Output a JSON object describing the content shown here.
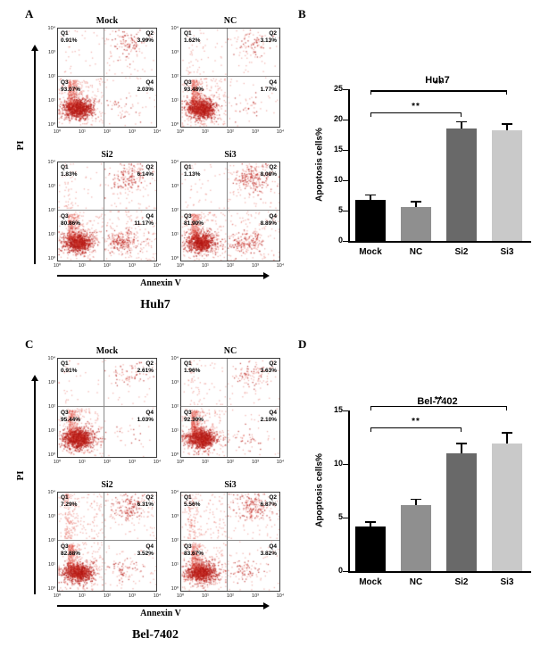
{
  "quadrant_names": [
    "Q1",
    "Q2",
    "Q3",
    "Q4"
  ],
  "flow_panels": [
    {
      "label": "A",
      "cell_line": "Huh7",
      "x_axis_label": "Annexin V",
      "y_axis_label": "PI",
      "tick_labels": [
        "10⁰",
        "10¹",
        "10²",
        "10³",
        "10⁴"
      ],
      "plots": [
        {
          "title": "Mock",
          "q1": "0.91%",
          "q2": "3.99%",
          "q3": "93.07%",
          "q4": "2.03%"
        },
        {
          "title": "NC",
          "q1": "1.62%",
          "q2": "3.13%",
          "q3": "93.48%",
          "q4": "1.77%"
        },
        {
          "title": "Si2",
          "q1": "1.83%",
          "q2": "6.14%",
          "q3": "80.86%",
          "q4": "11.17%"
        },
        {
          "title": "Si3",
          "q1": "1.13%",
          "q2": "8.08%",
          "q3": "81.90%",
          "q4": "8.89%"
        }
      ]
    },
    {
      "label": "C",
      "cell_line": "Bel-7402",
      "x_axis_label": "Annexin V",
      "y_axis_label": "PI",
      "tick_labels": [
        "10⁰",
        "10¹",
        "10²",
        "10³",
        "10⁴"
      ],
      "plots": [
        {
          "title": "Mock",
          "q1": "0.91%",
          "q2": "2.61%",
          "q3": "95.44%",
          "q4": "1.03%"
        },
        {
          "title": "NC",
          "q1": "1.96%",
          "q2": "3.63%",
          "q3": "92.30%",
          "q4": "2.10%"
        },
        {
          "title": "Si2",
          "q1": "7.29%",
          "q2": "6.31%",
          "q3": "82.88%",
          "q4": "3.52%"
        },
        {
          "title": "Si3",
          "q1": "5.56%",
          "q2": "6.87%",
          "q3": "83.67%",
          "q4": "3.82%"
        }
      ]
    }
  ],
  "chart_data": [
    {
      "type": "bar",
      "panel": "B",
      "title": "Huh7",
      "xlabel": "",
      "ylabel": "Apoptosis cells%",
      "ylim": [
        0,
        25
      ],
      "yticks": [
        0,
        5,
        10,
        15,
        20,
        25
      ],
      "categories": [
        "Mock",
        "NC",
        "Si2",
        "Si3"
      ],
      "values": [
        6.8,
        5.6,
        18.5,
        18.2
      ],
      "errors": [
        0.8,
        0.9,
        1.1,
        1.1
      ],
      "bar_colors": [
        "#000000",
        "#8f8f8f",
        "#696969",
        "#c9c9c9"
      ],
      "significance": [
        {
          "from": 0,
          "to": 3,
          "y": 24.8,
          "label": "**"
        },
        {
          "from": 0,
          "to": 2,
          "y": 21.2,
          "label": "**"
        }
      ]
    },
    {
      "type": "bar",
      "panel": "D",
      "title": "Bel-7402",
      "xlabel": "",
      "ylabel": "Apoptosis cells%",
      "ylim": [
        0,
        15
      ],
      "yticks": [
        0,
        5,
        10,
        15
      ],
      "categories": [
        "Mock",
        "NC",
        "Si2",
        "Si3"
      ],
      "values": [
        4.2,
        6.2,
        11.0,
        11.9
      ],
      "errors": [
        0.4,
        0.5,
        0.9,
        1.0
      ],
      "bar_colors": [
        "#000000",
        "#8f8f8f",
        "#696969",
        "#c9c9c9"
      ],
      "significance": [
        {
          "from": 0,
          "to": 3,
          "y": 15.4,
          "label": "**"
        },
        {
          "from": 0,
          "to": 2,
          "y": 13.4,
          "label": "**"
        }
      ]
    }
  ]
}
